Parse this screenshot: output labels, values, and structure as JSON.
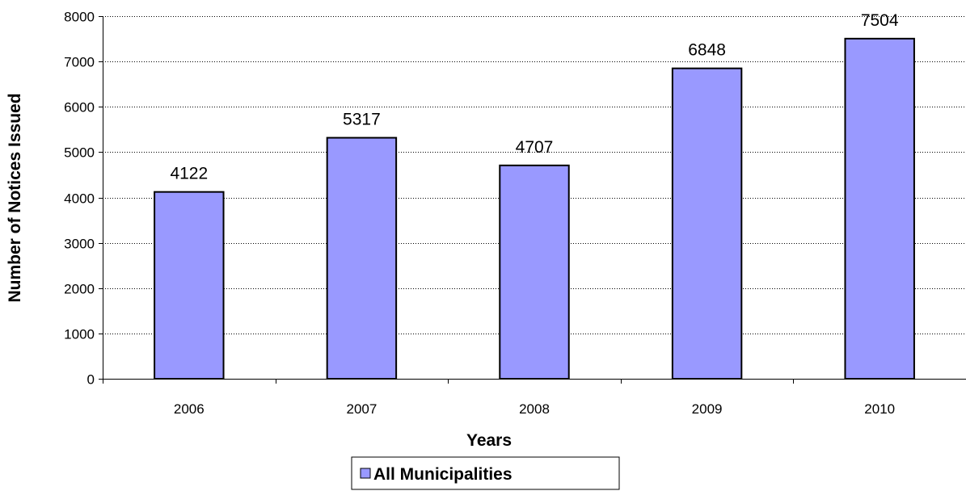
{
  "chart_data": {
    "type": "bar",
    "title": "",
    "categories": [
      "2006",
      "2007",
      "2008",
      "2009",
      "2010"
    ],
    "series": [
      {
        "name": "All Municipalities",
        "values": [
          4122,
          5317,
          4707,
          6848,
          7504
        ],
        "color": "#9999ff"
      }
    ],
    "data_labels": [
      "4122",
      "5317",
      "4707",
      "6848",
      "7504"
    ],
    "xlabel": "Years",
    "ylabel": "Number of Notices Issued",
    "ylim": [
      0,
      8000
    ],
    "yticks": [
      "0",
      "1000",
      "2000",
      "3000",
      "4000",
      "5000",
      "6000",
      "7000",
      "8000"
    ],
    "grid": "horizontal dotted",
    "legend": "bottom-center"
  }
}
